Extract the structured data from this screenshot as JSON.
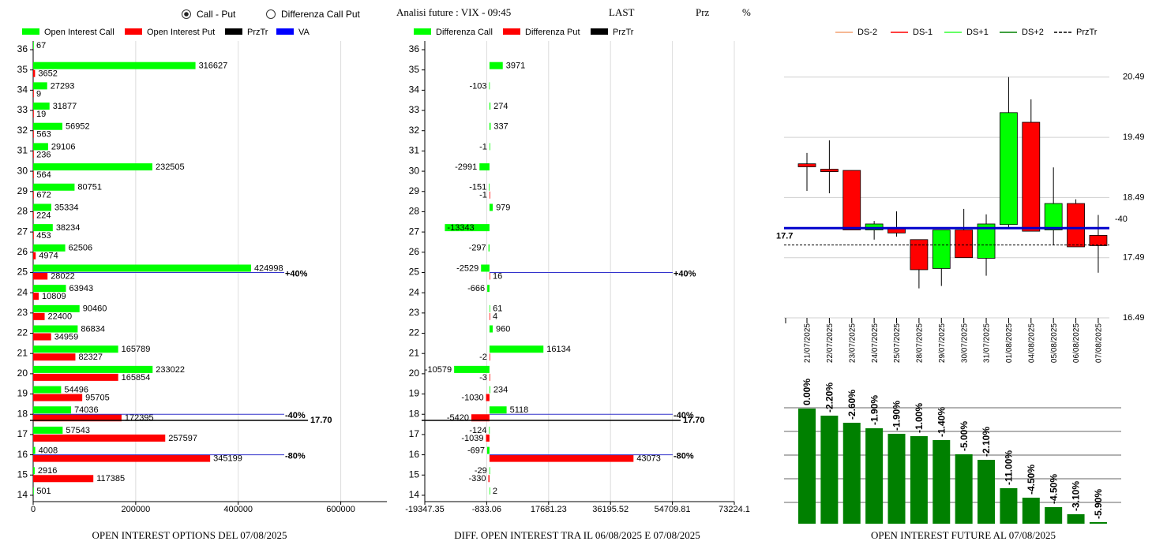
{
  "header": {
    "options": [
      "Call - Put",
      "Differenza Call Put"
    ],
    "selected": 0,
    "title": "Analisi future : VIX - 09:45",
    "columns": [
      "LAST",
      "Prz",
      "%"
    ]
  },
  "chart_data": [
    {
      "type": "bar",
      "orientation": "horizontal",
      "title": "OPEN INTEREST OPTIONS DEL 07/08/2025",
      "categories": [
        36,
        35,
        34,
        33,
        32,
        31,
        30,
        29,
        28,
        27,
        26,
        25,
        24,
        23,
        22,
        21,
        20,
        19,
        18,
        17,
        16,
        15,
        14
      ],
      "series": [
        {
          "name": "Open Interest Call",
          "color": "#00ff00",
          "values": [
            67,
            316627,
            27293,
            31877,
            56952,
            29106,
            232505,
            80751,
            35334,
            38234,
            62506,
            424998,
            63943,
            90460,
            86834,
            165789,
            233022,
            54496,
            74036,
            57543,
            4008,
            2916,
            501
          ]
        },
        {
          "name": "Open Interest Put",
          "color": "#ff0000",
          "values": [
            null,
            3652,
            9,
            19,
            563,
            236,
            564,
            672,
            224,
            453,
            4974,
            28022,
            10809,
            22400,
            34959,
            82327,
            165854,
            95705,
            172395,
            257597,
            345199,
            117385,
            null
          ]
        }
      ],
      "lines": [
        {
          "name": "PrzTr",
          "color": "#000000"
        },
        {
          "name": "VA",
          "color": "#0000ff"
        }
      ],
      "annotation_color": "#3333cc",
      "xlim": [
        0,
        690000
      ],
      "xticks": [
        0,
        200000,
        400000,
        600000
      ],
      "grid": true,
      "annotations": [
        {
          "value": 25,
          "label": "+40%"
        },
        {
          "value": 18,
          "label": "-40%"
        },
        {
          "value": 16,
          "label": "-80%"
        }
      ],
      "przTr": {
        "value": 17.7,
        "label": "17.70"
      }
    },
    {
      "type": "bar",
      "orientation": "horizontal",
      "title": "DIFF. OPEN INTEREST TRA IL 06/08/2025 E 07/08/2025",
      "categories": [
        36,
        35,
        34,
        33,
        32,
        31,
        30,
        29,
        28,
        27,
        26,
        25,
        24,
        23,
        22,
        21,
        20,
        19,
        18,
        17,
        16,
        15,
        14
      ],
      "series": [
        {
          "name": "Differenza Call",
          "color": "#00ff00",
          "values": [
            null,
            3971,
            -103,
            274,
            337,
            -1,
            -2991,
            -151,
            979,
            -13343,
            -297,
            -2529,
            -666,
            61,
            960,
            16134,
            -10579,
            234,
            5118,
            -124,
            -697,
            -29,
            2
          ]
        },
        {
          "name": "Differenza Put",
          "color": "#ff0000",
          "values": [
            null,
            null,
            null,
            null,
            null,
            null,
            null,
            -1,
            null,
            null,
            null,
            16,
            null,
            4,
            null,
            -2,
            -3,
            -1030,
            -5420,
            -1039,
            43073,
            -330,
            null
          ]
        }
      ],
      "lines": [
        {
          "name": "PrzTr",
          "color": "#000000"
        }
      ],
      "annotation_color": "#3333cc",
      "xlim": [
        -19347.35,
        73224.1
      ],
      "xticks": [
        -19347.35,
        -833.06,
        17681.23,
        36195.52,
        54709.81,
        73224.1
      ],
      "grid": true,
      "annotations": [
        {
          "value": 25,
          "label": "+40%"
        },
        {
          "value": 18,
          "label": "-40%"
        },
        {
          "value": 16,
          "label": "-80%"
        }
      ],
      "przTr": {
        "value": 17.7,
        "label": "17.70"
      }
    },
    {
      "type": "candlestick",
      "x": [
        "21/07/2025",
        "22/07/2025",
        "23/07/2025",
        "24/07/2025",
        "25/07/2025",
        "28/07/2025",
        "29/07/2025",
        "30/07/2025",
        "31/07/2025",
        "01/08/2025",
        "04/08/2025",
        "05/08/2025",
        "06/08/2025",
        "07/08/2025"
      ],
      "open": [
        19.05,
        18.96,
        18.94,
        17.95,
        17.99,
        17.79,
        17.31,
        17.95,
        17.48,
        18.04,
        19.74,
        17.95,
        18.39,
        17.86
      ],
      "high": [
        19.23,
        19.44,
        18.94,
        18.1,
        18.26,
        17.79,
        17.95,
        18.3,
        18.21,
        20.49,
        20.12,
        18.99,
        18.46,
        18.2
      ],
      "low": [
        18.6,
        18.56,
        17.95,
        17.79,
        17.84,
        16.98,
        17.02,
        17.49,
        17.19,
        17.97,
        17.93,
        17.7,
        17.67,
        17.24
      ],
      "close": [
        19.0,
        18.92,
        17.95,
        18.05,
        17.9,
        17.29,
        17.95,
        17.49,
        18.05,
        19.9,
        17.93,
        18.39,
        17.67,
        17.69
      ],
      "up_color": "#00ff00",
      "down_color": "#ff0000",
      "ylim": [
        16.49,
        20.6
      ],
      "yticks": [
        16.49,
        17.49,
        18.49,
        19.49,
        20.49
      ],
      "grid": true,
      "legend": [
        {
          "name": "DS-2",
          "color": "#f4a070"
        },
        {
          "name": "DS-1",
          "color": "#ff0000"
        },
        {
          "name": "DS+1",
          "color": "#33ff33"
        },
        {
          "name": "DS+2",
          "color": "#008000"
        },
        {
          "name": "PrzTr",
          "color": "#000000",
          "dashed": true
        }
      ],
      "va": {
        "value": 17.98,
        "label": "-40",
        "color": "#0000cc"
      },
      "przTr": 17.7
    },
    {
      "type": "bar",
      "title": "OPEN INTEREST FUTURE AL 07/08/2025",
      "values": [
        146,
        137,
        128,
        121,
        114,
        111,
        106,
        88,
        81,
        45,
        33,
        21,
        12,
        2
      ],
      "pct_labels": [
        "0.00%",
        "-2.20%",
        "-2.60%",
        "-1.90%",
        "-1.90%",
        "-1.00%",
        "-1.40%",
        "-5.00%",
        "-2.10%",
        "-11.00%",
        "-4.50%",
        "-4.50%",
        "-3.10%",
        "-5.90%"
      ],
      "color": "#008000",
      "ylim": [
        0,
        160
      ],
      "grid_lines": [
        27,
        57,
        87,
        117,
        147
      ]
    }
  ]
}
